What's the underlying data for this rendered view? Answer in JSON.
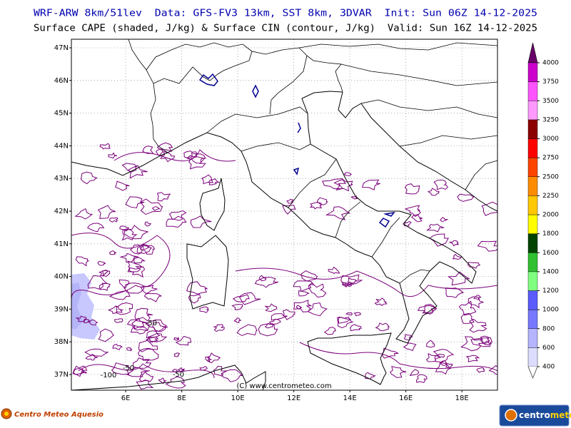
{
  "header": {
    "line1": "WRF-ARW 8km/51lev  Data: GFS-FV3 13km, SST 8km, 3DVAR  Init: Sun 06Z 14-12-2025",
    "line2": "Surface CAPE (shaded, J/kg) & Surface CIN (contour, J/kg)  Valid: Sun 16Z 14-12-2025"
  },
  "map": {
    "lat_ticks": [
      {
        "value": 47,
        "label": "47N"
      },
      {
        "value": 46,
        "label": "46N"
      },
      {
        "value": 45,
        "label": "45N"
      },
      {
        "value": 44,
        "label": "44N"
      },
      {
        "value": 43,
        "label": "43N"
      },
      {
        "value": 42,
        "label": "42N"
      },
      {
        "value": 41,
        "label": "41N"
      },
      {
        "value": 40,
        "label": "40N"
      },
      {
        "value": 39,
        "label": "39N"
      },
      {
        "value": 38,
        "label": "38N"
      },
      {
        "value": 37,
        "label": "37N"
      }
    ],
    "lon_ticks": [
      {
        "value": 6,
        "label": "6E"
      },
      {
        "value": 8,
        "label": "8E"
      },
      {
        "value": 10,
        "label": "10E"
      },
      {
        "value": 12,
        "label": "12E"
      },
      {
        "value": 14,
        "label": "14E"
      },
      {
        "value": 16,
        "label": "16E"
      },
      {
        "value": 18,
        "label": "18E"
      }
    ],
    "contour_labels": [
      "-50",
      "-50",
      "-100",
      "-50"
    ],
    "copyright": "(C) www.centrometeo.com"
  },
  "colorbar": {
    "ticks": [
      400,
      600,
      800,
      1000,
      1200,
      1400,
      1600,
      1800,
      2000,
      2250,
      2500,
      2750,
      3000,
      3250,
      3500,
      3750,
      4000
    ],
    "colors": [
      "#dcdcff",
      "#b4b4ff",
      "#7878ff",
      "#5a5aff",
      "#80ff80",
      "#30c030",
      "#004400",
      "#ffff00",
      "#ffc800",
      "#ff8c00",
      "#ff4500",
      "#ff0000",
      "#8b0000",
      "#ff99ff",
      "#ff55ff",
      "#cc00cc"
    ],
    "over_color": "#6a006a"
  },
  "footer": {
    "left_logo": "Centro Meteo Aquesio",
    "right_logo_a": "centro",
    "right_logo_b": "meteo"
  }
}
